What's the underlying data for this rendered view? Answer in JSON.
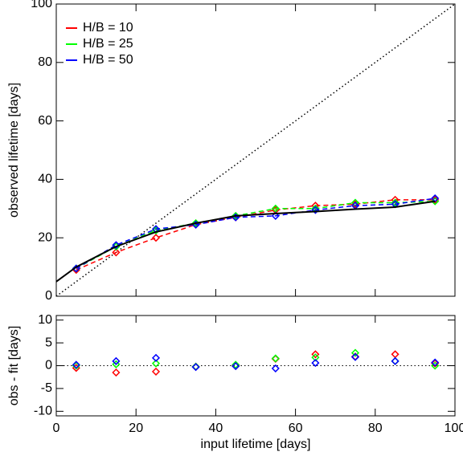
{
  "chart_data": [
    {
      "type": "line",
      "ylabel": "observed lifetime [days]",
      "x": [
        5,
        15,
        25,
        35,
        45,
        55,
        65,
        75,
        85,
        95
      ],
      "series": [
        {
          "name": "H/B = 10",
          "color": "#ff0000",
          "values": [
            9,
            15,
            20,
            24.5,
            27,
            29.5,
            31,
            31.5,
            33,
            33
          ]
        },
        {
          "name": "H/B = 25",
          "color": "#00ff00",
          "values": [
            9.5,
            17,
            22.5,
            25,
            27.5,
            30,
            30,
            32,
            32,
            32.5
          ]
        },
        {
          "name": "H/B = 50",
          "color": "#0000ff",
          "values": [
            9.5,
            17.5,
            23,
            24.5,
            27,
            27.5,
            29.5,
            31,
            31.5,
            33.5
          ]
        }
      ],
      "fit": {
        "color": "#000000",
        "x": [
          0,
          5,
          15,
          25,
          35,
          45,
          55,
          65,
          75,
          85,
          95
        ],
        "values": [
          5,
          10,
          17,
          22,
          25,
          27.5,
          28.3,
          29,
          29.8,
          30.5,
          32.5
        ]
      },
      "reference": {
        "x": [
          0,
          100
        ],
        "values": [
          0,
          100
        ]
      },
      "xlim": [
        0,
        100
      ],
      "xticks": [
        0,
        20,
        40,
        60,
        80,
        100
      ],
      "ylim": [
        0,
        100
      ],
      "yticks": [
        0,
        20,
        40,
        60,
        80,
        100
      ],
      "legend": "upper left"
    },
    {
      "type": "scatter",
      "xlabel": "input lifetime [days]",
      "ylabel": "obs - fit [days]",
      "x": [
        5,
        15,
        25,
        35,
        45,
        55,
        65,
        75,
        85,
        95
      ],
      "series": [
        {
          "color": "#ff0000",
          "values": [
            -0.5,
            -1.5,
            -1.3,
            -0.2,
            0,
            1.5,
            2.5,
            2,
            2.5,
            0.5
          ]
        },
        {
          "color": "#00ff00",
          "values": [
            0,
            0.3,
            0.5,
            -0.2,
            0.2,
            1.6,
            1.8,
            2.8,
            1,
            0
          ]
        },
        {
          "color": "#0000ff",
          "values": [
            0.2,
            1,
            1.7,
            -0.3,
            -0.1,
            -0.6,
            0.6,
            1.9,
            1,
            0.7
          ]
        }
      ],
      "xlim": [
        0,
        100
      ],
      "xticks": [
        0,
        20,
        40,
        60,
        80,
        100
      ],
      "ylim": [
        -11,
        11
      ],
      "yticks": [
        -10,
        -5,
        0,
        5,
        10
      ]
    }
  ]
}
